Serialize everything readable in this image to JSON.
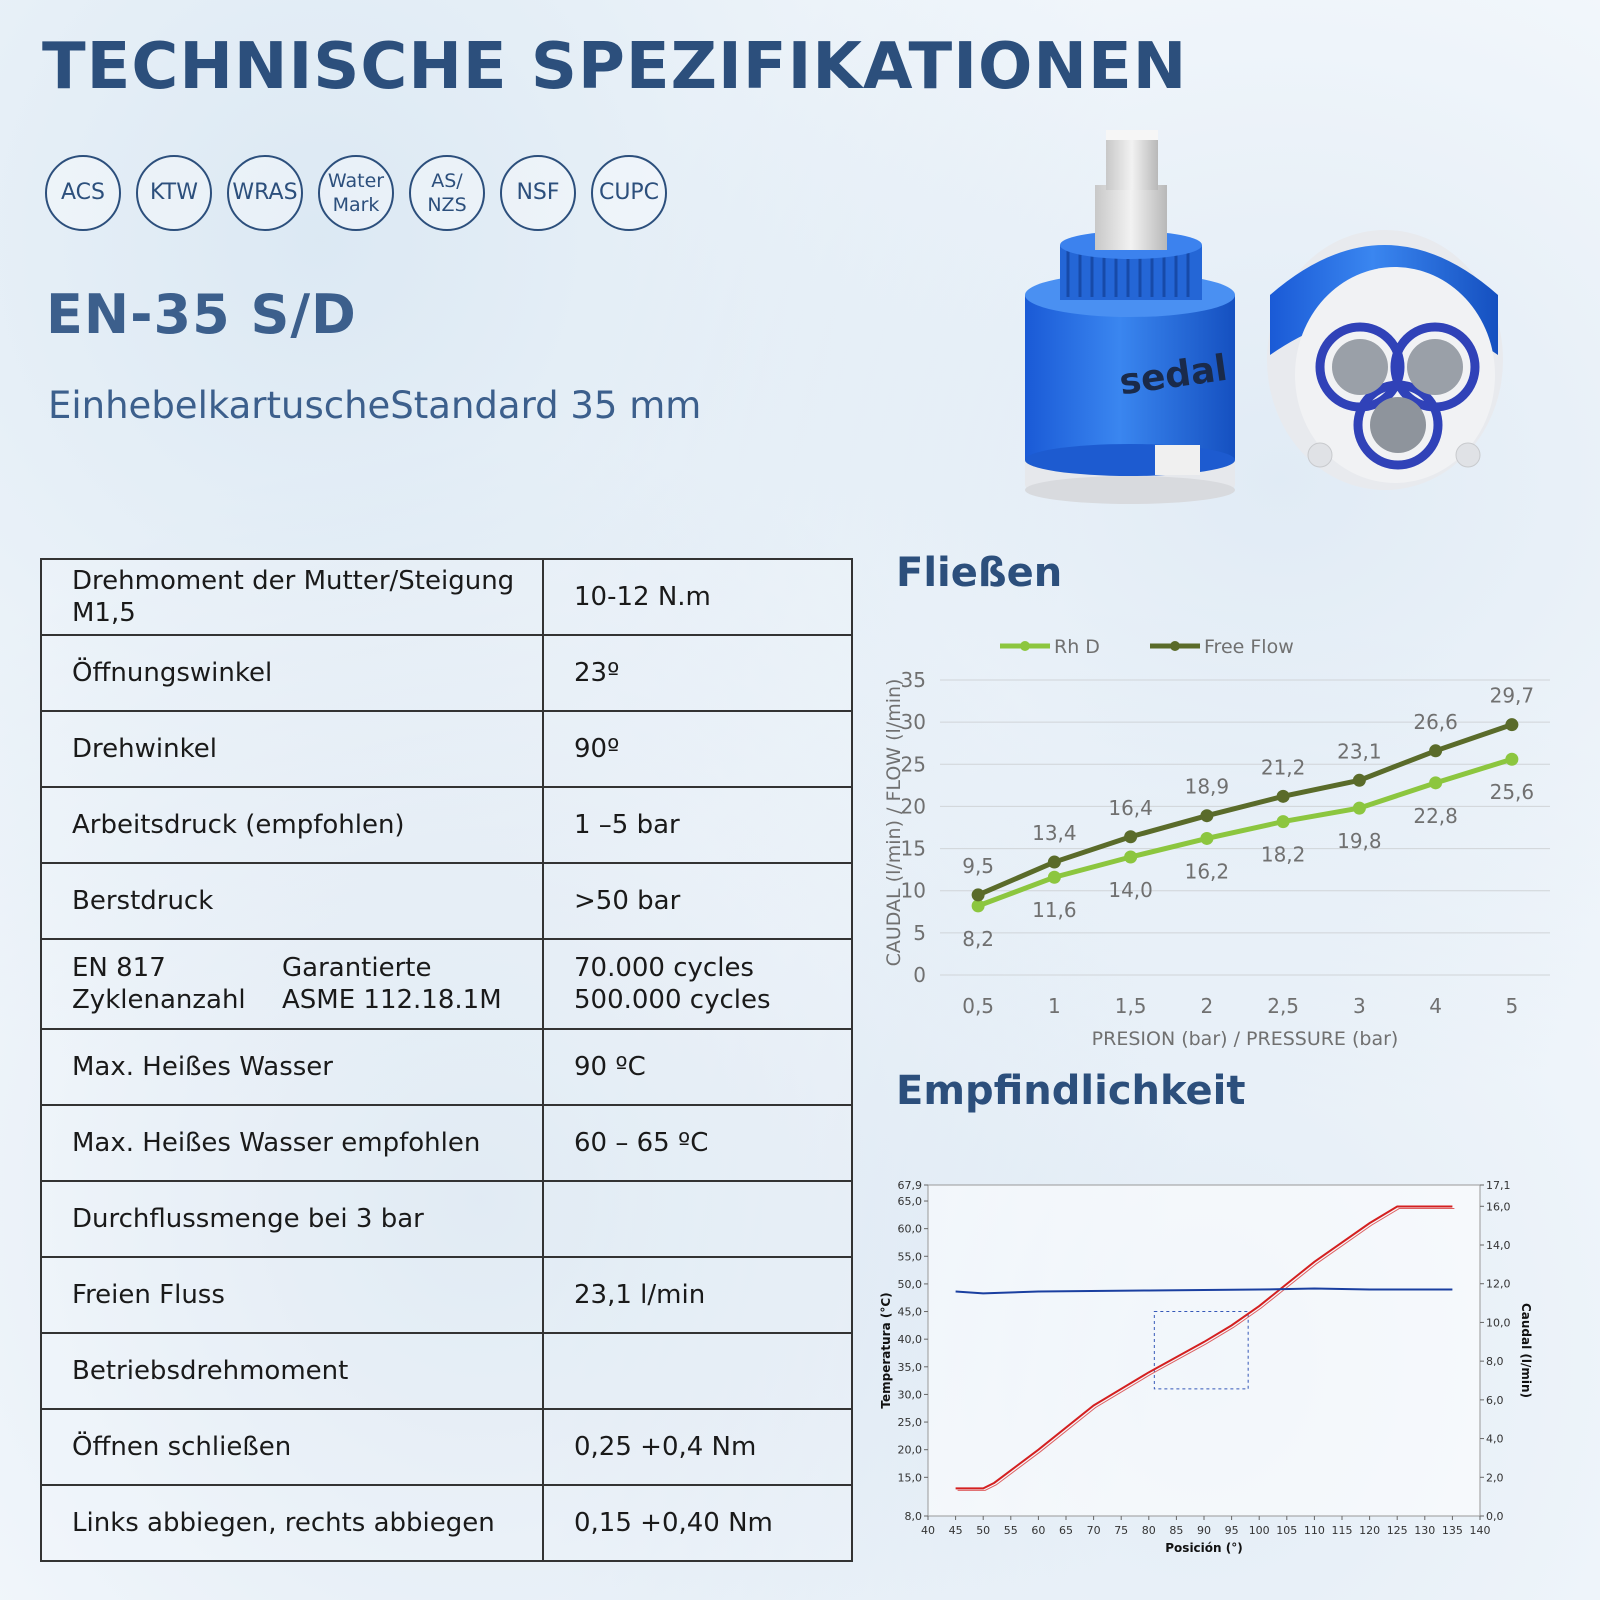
{
  "title": "TECHNISCHE SPEZIFIKATIONEN",
  "certifications": [
    {
      "l1": "ACS",
      "l2": ""
    },
    {
      "l1": "KTW",
      "l2": ""
    },
    {
      "l1": "WRAS",
      "l2": ""
    },
    {
      "l1": "Water",
      "l2": "Mark"
    },
    {
      "l1": "AS/",
      "l2": "NZS"
    },
    {
      "l1": "NSF",
      "l2": ""
    },
    {
      "l1": "CUPC",
      "l2": ""
    }
  ],
  "model": "EN-35 S/D",
  "subtitle": "EinhebelkartuscheStandard 35 mm",
  "brand": "sedal",
  "specs": [
    {
      "label": "Drehmoment der Mutter/Steigung M1,5",
      "value": "10-12 N.m"
    },
    {
      "label": "Öffnungswinkel",
      "value": "23º"
    },
    {
      "label": "Drehwinkel",
      "value": "90º"
    },
    {
      "label": "Arbeitsdruck (empfohlen)",
      "value": "1 –5 bar"
    },
    {
      "label": "Berstdruck",
      "value": ">50 bar"
    },
    {
      "label_a1": "EN 817",
      "label_a2": "Zyklenanzahl",
      "label_b1": "Garantierte",
      "label_b2": "ASME 112.18.1M",
      "value1": "70.000 cycles",
      "value2": "500.000 cycles"
    },
    {
      "label": "Max. Heißes Wasser",
      "value": "90 ºC"
    },
    {
      "label": "Max. Heißes Wasser empfohlen",
      "value": "60 – 65 ºC"
    },
    {
      "label": "Durchflussmenge bei 3 bar",
      "value": ""
    },
    {
      "label": "Freien Fluss",
      "value": "23,1 l/min"
    },
    {
      "label": "Betriebsdrehmoment",
      "value": ""
    },
    {
      "label": "Öffnen schließen",
      "value": "0,25  +0,4 Nm"
    },
    {
      "label": "Links abbiegen, rechts abbiegen",
      "value": "0,15  +0,40  Nm"
    }
  ],
  "flow_heading": "Fließen",
  "sens_heading": "Empfindlichkeit",
  "chart_data": [
    {
      "type": "line",
      "categories": [
        "0,5",
        "1",
        "1,5",
        "2",
        "2,5",
        "3",
        "4",
        "5"
      ],
      "series": [
        {
          "name": "Rh D",
          "color": "#8cc63f",
          "values": [
            8.2,
            11.6,
            14.0,
            16.2,
            18.2,
            19.8,
            22.8,
            25.6
          ],
          "labels": [
            "8,2",
            "11,6",
            "14,0",
            "16,2",
            "18,2",
            "19,8",
            "22,8",
            "25,6"
          ]
        },
        {
          "name": "Free Flow",
          "color": "#5a6b2a",
          "values": [
            9.5,
            13.4,
            16.4,
            18.9,
            21.2,
            23.1,
            26.6,
            29.7
          ],
          "labels": [
            "9,5",
            "13,4",
            "16,4",
            "18,9",
            "21,2",
            "23,1",
            "26,6",
            "29,7"
          ]
        }
      ],
      "xlabel": "PRESION (bar) / PRESSURE (bar)",
      "ylabel": "CAUDAL (l/min) / FLOW (l/min)",
      "ylim": [
        0,
        35
      ],
      "yticks": [
        "0",
        "5",
        "10",
        "15",
        "20",
        "25",
        "30",
        "35"
      ],
      "grid": true,
      "legend": "top"
    },
    {
      "type": "line",
      "xlabel": "Posición (°)",
      "ylabel": "Temperatura (°C)",
      "y2label": "Caudal (l/min)",
      "xlim": [
        40,
        140
      ],
      "xticks": [
        "40",
        "45",
        "50",
        "55",
        "60",
        "65",
        "70",
        "75",
        "80",
        "85",
        "90",
        "95",
        "100",
        "105",
        "110",
        "115",
        "120",
        "125",
        "130",
        "135",
        "140"
      ],
      "ylim": [
        8.0,
        67.9
      ],
      "yticks": [
        "8,0",
        "15,0",
        "20,0",
        "25,0",
        "30,0",
        "35,0",
        "40,0",
        "45,0",
        "50,0",
        "55,0",
        "60,0",
        "65,0",
        "67,9"
      ],
      "y2lim": [
        0,
        17.1
      ],
      "y2ticks": [
        "0,0",
        "2,0",
        "4,0",
        "6,0",
        "8,0",
        "10,0",
        "12,0",
        "14,0",
        "16,0",
        "17,1"
      ],
      "series": [
        {
          "name": "",
          "color": "#d42020",
          "axis": "left",
          "x": [
            45,
            50,
            52,
            60,
            70,
            80,
            90,
            95,
            100,
            110,
            120,
            125,
            130,
            135
          ],
          "y": [
            13.0,
            13.0,
            14.0,
            20.0,
            28.0,
            34.0,
            39.5,
            42.5,
            46.0,
            54.0,
            61.0,
            64.0,
            64.0,
            64.0
          ]
        },
        {
          "name": "",
          "color": "#1a3fa0",
          "axis": "right",
          "x": [
            45,
            50,
            60,
            80,
            100,
            110,
            120,
            135
          ],
          "y": [
            11.6,
            11.5,
            11.6,
            11.65,
            11.7,
            11.75,
            11.7,
            11.7
          ]
        }
      ]
    }
  ]
}
